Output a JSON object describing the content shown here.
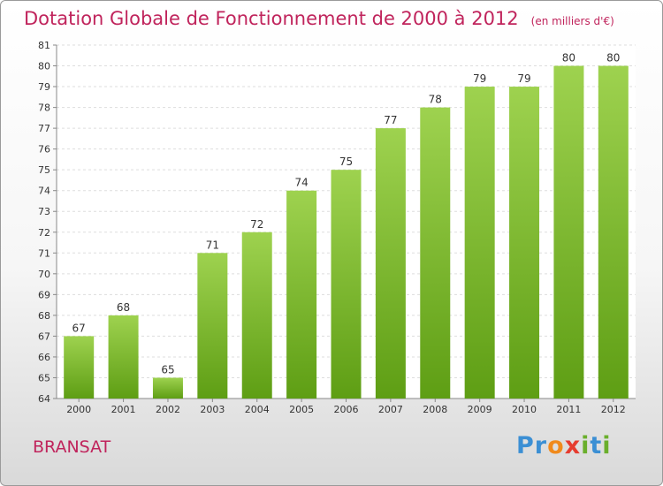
{
  "header": {
    "title": "Dotation Globale de Fonctionnement de 2000 à 2012",
    "unit": "(en milliers d'€)"
  },
  "footer": {
    "town": "BRANSAT",
    "logo": [
      {
        "ch": "P",
        "color": "#3b8fd4"
      },
      {
        "ch": "r",
        "color": "#3b8fd4"
      },
      {
        "ch": "o",
        "color": "#f08a1c"
      },
      {
        "ch": "x",
        "color": "#e63c2f"
      },
      {
        "ch": "i",
        "color": "#6aaf2c"
      },
      {
        "ch": "t",
        "color": "#3b8fd4"
      },
      {
        "ch": "i",
        "color": "#6aaf2c"
      }
    ]
  },
  "chart_data": {
    "type": "bar",
    "title": "Dotation Globale de Fonctionnement de 2000 à 2012",
    "categories": [
      "2000",
      "2001",
      "2002",
      "2003",
      "2004",
      "2005",
      "2006",
      "2007",
      "2008",
      "2009",
      "2010",
      "2011",
      "2012"
    ],
    "values": [
      67,
      68,
      65,
      71,
      72,
      74,
      75,
      77,
      78,
      79,
      79,
      80,
      80
    ],
    "ylim": [
      64,
      81
    ],
    "yticks": [
      64,
      65,
      66,
      67,
      68,
      69,
      70,
      71,
      72,
      73,
      74,
      75,
      76,
      77,
      78,
      79,
      80,
      81
    ],
    "grid": true,
    "bar_color_top": "#9ed24f",
    "bar_color_bottom": "#5e9e14",
    "label_color": "#333333"
  }
}
